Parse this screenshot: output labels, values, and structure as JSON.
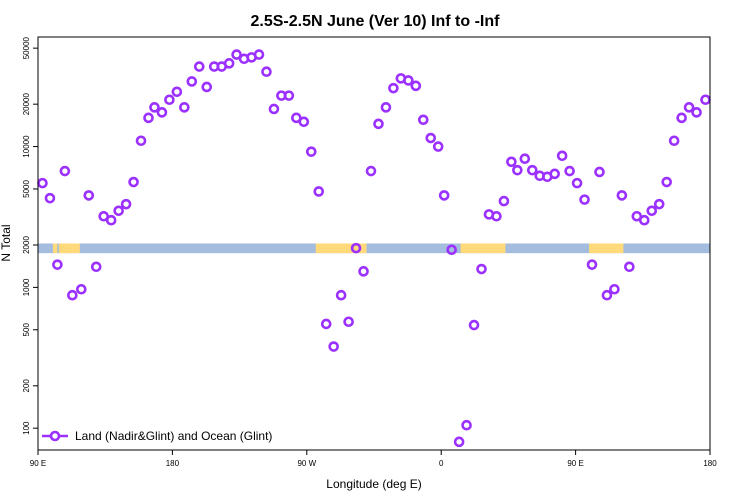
{
  "chart_data": {
    "type": "scatter",
    "title": "2.5S-2.5N June (Ver 10)   Inf to -Inf",
    "xlabel": "Longitude (deg E)",
    "ylabel": "N Total",
    "x_ticks": [
      {
        "value": 90,
        "label": "90 E"
      },
      {
        "value": 180,
        "label": "180"
      },
      {
        "value": 270,
        "label": "90 W"
      },
      {
        "value": 360,
        "label": "0"
      },
      {
        "value": 450,
        "label": "90 E"
      },
      {
        "value": 540,
        "label": "180"
      }
    ],
    "y_ticks": [
      {
        "value": 100,
        "label": "100"
      },
      {
        "value": 200,
        "label": "200"
      },
      {
        "value": 500,
        "label": "500"
      },
      {
        "value": 1000,
        "label": "1000"
      },
      {
        "value": 2000,
        "label": "2000"
      },
      {
        "value": 5000,
        "label": "5000"
      },
      {
        "value": 10000,
        "label": "10000"
      },
      {
        "value": 20000,
        "label": "20000"
      },
      {
        "value": 50000,
        "label": "50000"
      }
    ],
    "xlim": [
      90,
      540
    ],
    "ylim": [
      70,
      60000
    ],
    "y_scale": "log",
    "grid": false,
    "legend_position": "bottom-left",
    "series": [
      {
        "name": "Land (Nadir&Glint) and Ocean (Glint)",
        "color": "#9b30ff",
        "marker": "open-circle",
        "points": [
          [
            93,
            5500
          ],
          [
            98,
            4300
          ],
          [
            103,
            1450
          ],
          [
            108,
            6700
          ],
          [
            113,
            880
          ],
          [
            119,
            970
          ],
          [
            124,
            4500
          ],
          [
            129,
            1400
          ],
          [
            134,
            3200
          ],
          [
            139,
            3000
          ],
          [
            144,
            3500
          ],
          [
            149,
            3900
          ],
          [
            154,
            5600
          ],
          [
            159,
            11000
          ],
          [
            164,
            16000
          ],
          [
            168,
            19000
          ],
          [
            173,
            17500
          ],
          [
            178,
            21500
          ],
          [
            183,
            24500
          ],
          [
            188,
            19000
          ],
          [
            193,
            29000
          ],
          [
            198,
            37000
          ],
          [
            203,
            26500
          ],
          [
            208,
            37000
          ],
          [
            213,
            37000
          ],
          [
            218,
            39000
          ],
          [
            223,
            45000
          ],
          [
            228,
            42000
          ],
          [
            233,
            43000
          ],
          [
            238,
            45000
          ],
          [
            243,
            34000
          ],
          [
            248,
            18500
          ],
          [
            253,
            23000
          ],
          [
            258,
            23000
          ],
          [
            263,
            16000
          ],
          [
            268,
            15000
          ],
          [
            273,
            9200
          ],
          [
            278,
            4800
          ],
          [
            283,
            550
          ],
          [
            288,
            380
          ],
          [
            293,
            880
          ],
          [
            298,
            570
          ],
          [
            303,
            1900
          ],
          [
            308,
            1300
          ],
          [
            313,
            6700
          ],
          [
            318,
            14500
          ],
          [
            323,
            19000
          ],
          [
            328,
            26000
          ],
          [
            333,
            30500
          ],
          [
            338,
            29500
          ],
          [
            343,
            27000
          ],
          [
            348,
            15500
          ],
          [
            353,
            11500
          ],
          [
            358,
            10000
          ],
          [
            362,
            4500
          ],
          [
            367,
            1850
          ],
          [
            372,
            80
          ],
          [
            377,
            105
          ],
          [
            382,
            540
          ],
          [
            387,
            1350
          ],
          [
            392,
            3300
          ],
          [
            397,
            3200
          ],
          [
            402,
            4100
          ],
          [
            407,
            7800
          ],
          [
            411,
            6800
          ],
          [
            416,
            8200
          ],
          [
            421,
            6800
          ],
          [
            426,
            6200
          ],
          [
            431,
            6100
          ],
          [
            436,
            6400
          ],
          [
            441,
            8600
          ],
          [
            446,
            6700
          ],
          [
            451,
            5500
          ],
          [
            456,
            4200
          ],
          [
            461,
            1450
          ],
          [
            466,
            6600
          ],
          [
            471,
            880
          ],
          [
            476,
            970
          ],
          [
            481,
            4500
          ],
          [
            486,
            1400
          ],
          [
            491,
            3200
          ],
          [
            496,
            3000
          ],
          [
            501,
            3500
          ],
          [
            506,
            3900
          ],
          [
            511,
            5600
          ],
          [
            516,
            11000
          ],
          [
            521,
            16000
          ],
          [
            526,
            19000
          ],
          [
            531,
            17500
          ],
          [
            537,
            21500
          ]
        ]
      }
    ],
    "surface_band": {
      "y_range": [
        1750,
        2050
      ],
      "ocean_color": "#a4bcdd",
      "land_color": "#ffd97a",
      "land_ranges": [
        [
          100,
          103
        ],
        [
          104,
          118
        ],
        [
          276,
          310
        ],
        [
          373,
          403
        ],
        [
          459,
          482
        ]
      ]
    }
  }
}
